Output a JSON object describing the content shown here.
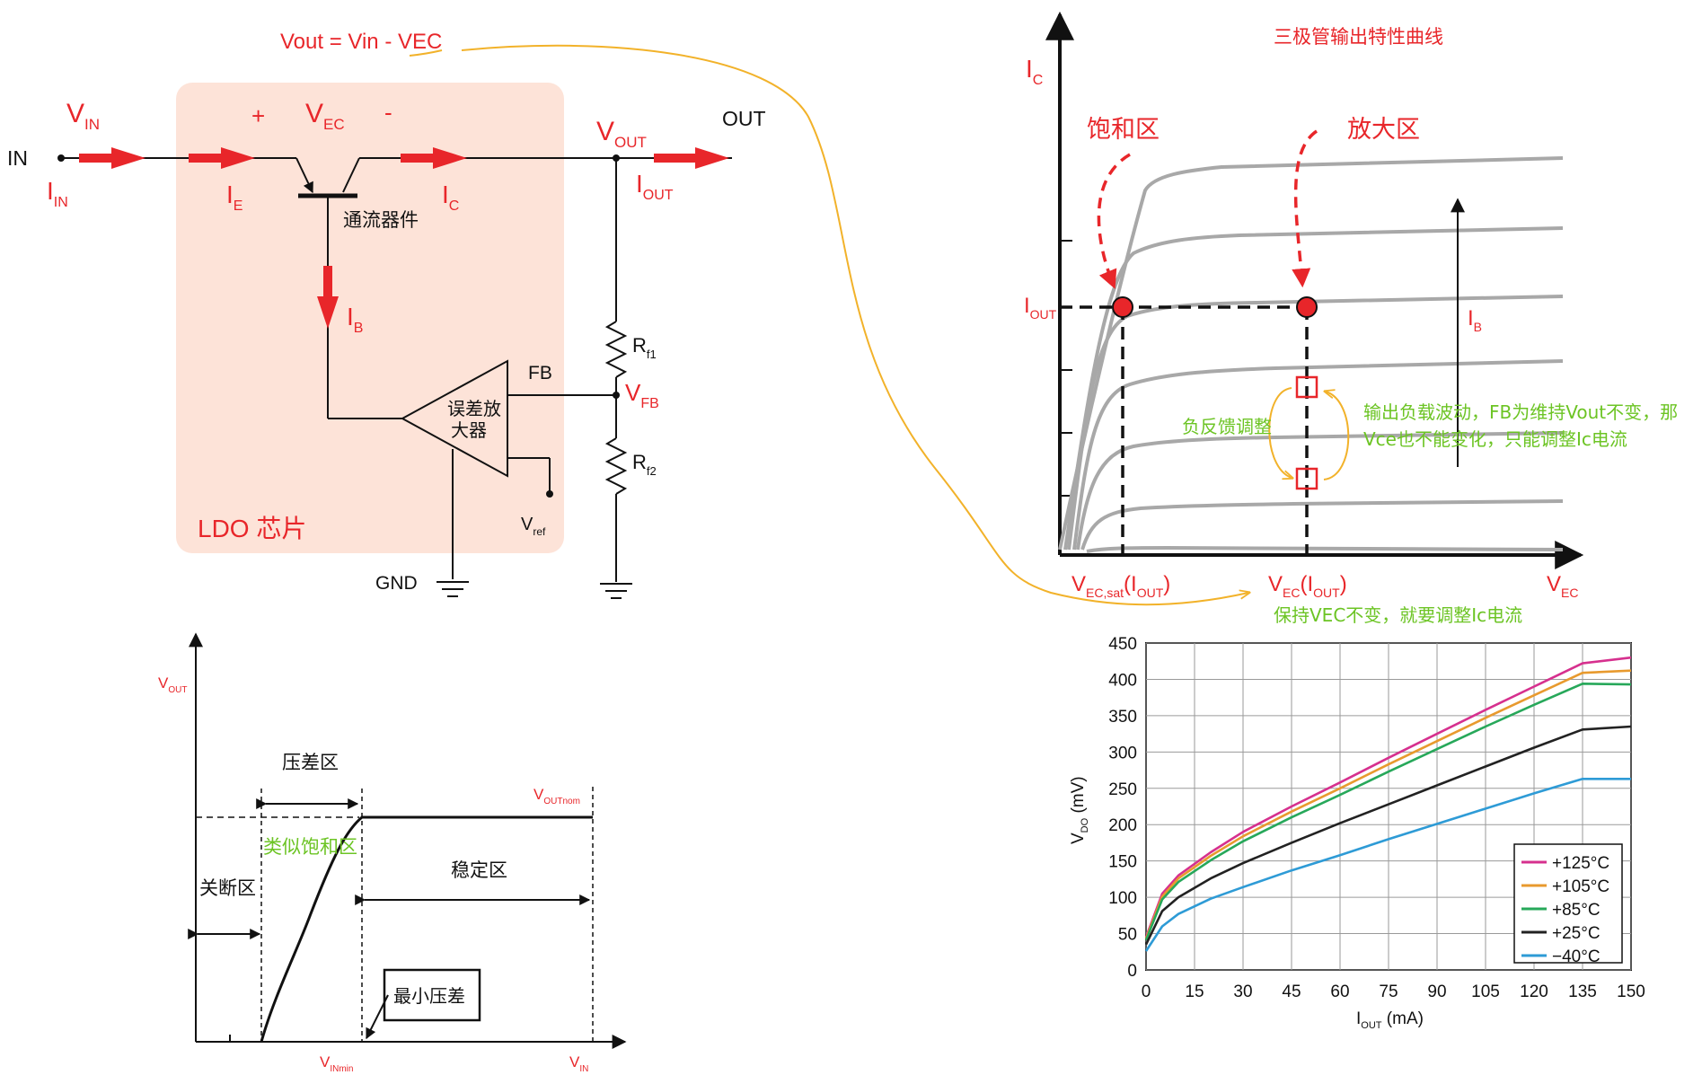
{
  "annotation_top": "Vout = Vin - VEC",
  "ldo": {
    "vin_label": "V",
    "vin_sub": "IN",
    "in_label": "IN",
    "iin_label": "I",
    "iin_sub": "IN",
    "ie_label": "I",
    "ie_sub": "E",
    "plus": "+",
    "minus": "-",
    "vec_label": "V",
    "vec_sub": "EC",
    "ic_label": "I",
    "ic_sub": "C",
    "pass_device": "通流器件",
    "ib_label": "I",
    "ib_sub": "B",
    "vout_label": "V",
    "vout_sub": "OUT",
    "out_label": "OUT",
    "iout_label": "I",
    "iout_sub": "OUT",
    "fb_label": "FB",
    "rf1_label": "R",
    "rf1_sub": "f1",
    "vfb_label": "V",
    "vfb_sub": "FB",
    "rf2_label": "R",
    "rf2_sub": "f2",
    "amp_line1": "误差放",
    "amp_line2": "大器",
    "vref_label": "V",
    "vref_sub": "ref",
    "gnd_label": "GND",
    "chip_label": "LDO 芯片"
  },
  "bjt": {
    "title": "三极管输出特性曲线",
    "ic_label": "I",
    "ic_sub": "C",
    "saturation": "饱和区",
    "amplify": "放大区",
    "iout_label": "I",
    "iout_sub": "OUT",
    "ib_label": "I",
    "ib_sub": "B",
    "feedback_label": "负反馈调整",
    "note_line1": "输出负载波动，FB为维持Vout不变，那",
    "note_line2": "Vce也不能变化，只能调整Ic电流",
    "x1_label": "V",
    "x1_sub": "EC,sat",
    "x1_paren_l": "(I",
    "x1_paren_sub": "OUT",
    "x1_paren_r": ")",
    "x2_label": "V",
    "x2_sub": "EC",
    "x2_paren_l": "(I",
    "x2_paren_sub": "OUT",
    "x2_paren_r": ")",
    "x3_label": "V",
    "x3_sub": "EC",
    "bottom_note": "保持VEC不变，就要调整Ic电流"
  },
  "dropout": {
    "vout_label": "V",
    "vout_sub": "OUT",
    "dropout_region": "压差区",
    "voutnom_label": "V",
    "voutnom_sub": "OUTnom",
    "similar": "类似饱和区",
    "off_region": "关断区",
    "stable_region": "稳定区",
    "min_dropout": "最小压差",
    "vinmin_label": "V",
    "vinmin_sub": "INmin",
    "vin_label": "V",
    "vin_sub": "IN"
  },
  "chart_data": {
    "type": "line",
    "x": [
      0,
      5,
      10,
      20,
      30,
      45,
      60,
      75,
      90,
      105,
      120,
      135,
      150
    ],
    "xlabel": "I",
    "xlabel_sub": "OUT",
    "xlabel_unit": " (mA)",
    "ylabel": "V",
    "ylabel_sub": "DO",
    "ylabel_unit": " (mV)",
    "xlim": [
      0,
      150
    ],
    "ylim": [
      0,
      450
    ],
    "xticks": [
      0,
      15,
      30,
      45,
      60,
      75,
      90,
      105,
      120,
      135,
      150
    ],
    "yticks": [
      0,
      50,
      100,
      150,
      200,
      250,
      300,
      350,
      400,
      450
    ],
    "grid": true,
    "legend_position": "bottom-right",
    "series": [
      {
        "name": "+125°C",
        "color": "#d6308e",
        "values": [
          45,
          105,
          130,
          162,
          190,
          225,
          258,
          292,
          325,
          358,
          390,
          422,
          430
        ]
      },
      {
        "name": "+105°C",
        "color": "#e89a2e",
        "values": [
          43,
          101,
          126,
          157,
          184,
          218,
          250,
          283,
          315,
          347,
          378,
          409,
          412
        ]
      },
      {
        "name": "+85°C",
        "color": "#27a85a",
        "values": [
          41,
          97,
          121,
          151,
          177,
          210,
          241,
          273,
          304,
          335,
          365,
          394,
          393
        ]
      },
      {
        "name": "+25°C",
        "color": "#222222",
        "values": [
          35,
          81,
          100,
          126,
          147,
          175,
          202,
          228,
          254,
          280,
          306,
          331,
          335
        ]
      },
      {
        "name": "−40°C",
        "color": "#2e9bd6",
        "values": [
          26,
          60,
          77,
          98,
          114,
          137,
          158,
          180,
          201,
          222,
          243,
          263,
          263
        ]
      }
    ]
  }
}
